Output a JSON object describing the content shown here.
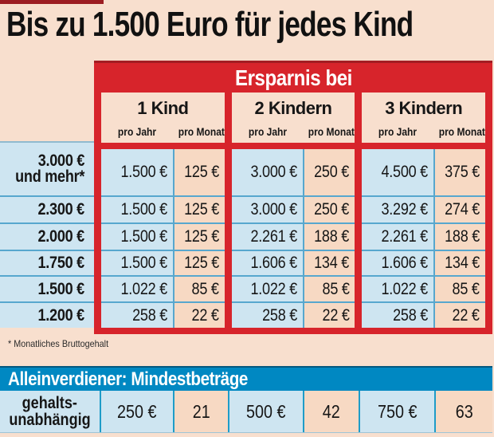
{
  "page": {
    "title": "Bis zu 1.500 Euro für jedes Kind",
    "footnote": "* Monatliches Bruttogehalt"
  },
  "table": {
    "header": "Ersparnis bei",
    "groups": [
      {
        "label": "1 Kind",
        "sub": [
          "pro Jahr",
          "pro Monat"
        ]
      },
      {
        "label": "2 Kindern",
        "sub": [
          "pro Jahr",
          "pro Monat"
        ]
      },
      {
        "label": "3 Kindern",
        "sub": [
          "pro Jahr",
          "pro Monat"
        ]
      }
    ],
    "rows": [
      {
        "label": "3.000 €",
        "label_line2": "und mehr*",
        "values": [
          "1.500 €",
          "125 €",
          "3.000 €",
          "250 €",
          "4.500 €",
          "375 €"
        ]
      },
      {
        "label": "2.300 €",
        "values": [
          "1.500 €",
          "125 €",
          "3.000 €",
          "250 €",
          "3.292 €",
          "274 €"
        ]
      },
      {
        "label": "2.000 €",
        "values": [
          "1.500 €",
          "125 €",
          "2.261 €",
          "188 €",
          "2.261 €",
          "188 €"
        ]
      },
      {
        "label": "1.750 €",
        "values": [
          "1.500 €",
          "125 €",
          "1.606 €",
          "134 €",
          "1.606 €",
          "134 €"
        ]
      },
      {
        "label": "1.500 €",
        "values": [
          "1.022 €",
          "85 €",
          "1.022 €",
          "85 €",
          "1.022 €",
          "85 €"
        ]
      },
      {
        "label": "1.200 €",
        "values": [
          "258 €",
          "22 €",
          "258 €",
          "22 €",
          "258 €",
          "22 €"
        ]
      }
    ]
  },
  "bottom": {
    "header": "Alleinverdiener: Mindestbeträge",
    "label_line1": "gehalts-",
    "label_line2": "unabhängig",
    "values": [
      "250 €",
      "21",
      "500 €",
      "42",
      "750 €",
      "63"
    ]
  },
  "colors": {
    "background": "#F8DFCE",
    "accent_red": "#D7242B",
    "dark_red": "#A31D23",
    "cell_blue": "#CEE5F1",
    "cell_peach": "#F7D9C3",
    "divider_teal": "#57A7CE",
    "bottom_header_blue": "#0088C2",
    "text": "#161616"
  },
  "chart_data": {
    "type": "table",
    "title": "Bis zu 1.500 Euro für jedes Kind",
    "table_header": "Ersparnis bei",
    "column_groups": [
      "1 Kind",
      "2 Kindern",
      "3 Kindern"
    ],
    "sub_columns": [
      "pro Jahr",
      "pro Monat"
    ],
    "row_dimension": "Monatliches Bruttogehalt",
    "footnote": "* Monatliches Bruttogehalt",
    "rows": [
      {
        "bruttogehalt_eur": "3.000 und mehr",
        "kind1": {
          "pro_jahr": 1500,
          "pro_monat": 125
        },
        "kinder2": {
          "pro_jahr": 3000,
          "pro_monat": 250
        },
        "kinder3": {
          "pro_jahr": 4500,
          "pro_monat": 375
        }
      },
      {
        "bruttogehalt_eur": "2.300",
        "kind1": {
          "pro_jahr": 1500,
          "pro_monat": 125
        },
        "kinder2": {
          "pro_jahr": 3000,
          "pro_monat": 250
        },
        "kinder3": {
          "pro_jahr": 3292,
          "pro_monat": 274
        }
      },
      {
        "bruttogehalt_eur": "2.000",
        "kind1": {
          "pro_jahr": 1500,
          "pro_monat": 125
        },
        "kinder2": {
          "pro_jahr": 2261,
          "pro_monat": 188
        },
        "kinder3": {
          "pro_jahr": 2261,
          "pro_monat": 188
        }
      },
      {
        "bruttogehalt_eur": "1.750",
        "kind1": {
          "pro_jahr": 1500,
          "pro_monat": 125
        },
        "kinder2": {
          "pro_jahr": 1606,
          "pro_monat": 134
        },
        "kinder3": {
          "pro_jahr": 1606,
          "pro_monat": 134
        }
      },
      {
        "bruttogehalt_eur": "1.500",
        "kind1": {
          "pro_jahr": 1022,
          "pro_monat": 85
        },
        "kinder2": {
          "pro_jahr": 1022,
          "pro_monat": 85
        },
        "kinder3": {
          "pro_jahr": 1022,
          "pro_monat": 85
        }
      },
      {
        "bruttogehalt_eur": "1.200",
        "kind1": {
          "pro_jahr": 258,
          "pro_monat": 22
        },
        "kinder2": {
          "pro_jahr": 258,
          "pro_monat": 22
        },
        "kinder3": {
          "pro_jahr": 258,
          "pro_monat": 22
        }
      }
    ],
    "secondary_table": {
      "title": "Alleinverdiener: Mindestbeträge",
      "row_label": "gehaltsunabhängig",
      "values": [
        {
          "kinder": 1,
          "pro_jahr_eur": 250,
          "pro_monat": 21
        },
        {
          "kinder": 2,
          "pro_jahr_eur": 500,
          "pro_monat": 42
        },
        {
          "kinder": 3,
          "pro_jahr_eur": 750,
          "pro_monat": 63
        }
      ]
    }
  }
}
